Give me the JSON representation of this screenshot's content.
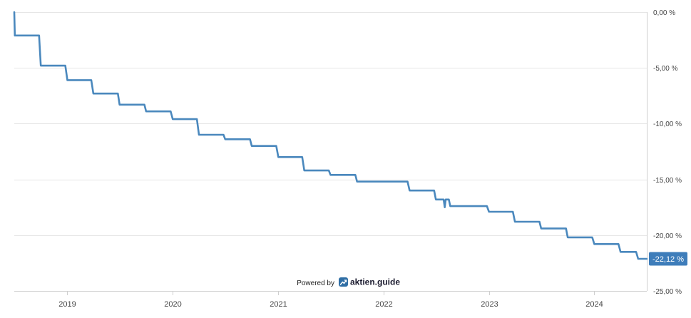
{
  "chart_data": {
    "type": "line",
    "title": "",
    "xlabel": "",
    "ylabel": "",
    "x_range": [
      "2018-07-01",
      "2024-07-01"
    ],
    "ylim": [
      -25,
      0
    ],
    "y_ticks": [
      0,
      -5,
      -10,
      -15,
      -20,
      -25
    ],
    "y_tick_labels": [
      "0,00 %",
      "-5,00 %",
      "-10,00 %",
      "-15,00 %",
      "-20,00 %",
      "-25,00 %"
    ],
    "x_ticks": [
      "2019-01-01",
      "2020-01-01",
      "2021-01-01",
      "2022-01-01",
      "2023-01-01",
      "2024-01-01"
    ],
    "x_tick_labels": [
      "2019",
      "2020",
      "2021",
      "2022",
      "2023",
      "2024"
    ],
    "grid": true,
    "legend": "none",
    "series": [
      {
        "color": "#4a88bd",
        "points": [
          [
            "2018-07-01",
            0.0
          ],
          [
            "2018-07-03",
            -2.1
          ],
          [
            "2018-09-25",
            -2.1
          ],
          [
            "2018-10-01",
            -4.8
          ],
          [
            "2018-12-25",
            -4.8
          ],
          [
            "2019-01-01",
            -6.1
          ],
          [
            "2019-03-25",
            -6.1
          ],
          [
            "2019-04-01",
            -7.3
          ],
          [
            "2019-06-25",
            -7.3
          ],
          [
            "2019-07-01",
            -8.3
          ],
          [
            "2019-09-25",
            -8.3
          ],
          [
            "2019-10-01",
            -8.9
          ],
          [
            "2019-12-25",
            -8.9
          ],
          [
            "2020-01-01",
            -9.6
          ],
          [
            "2020-03-25",
            -9.6
          ],
          [
            "2020-04-01",
            -11.0
          ],
          [
            "2020-06-25",
            -11.0
          ],
          [
            "2020-07-01",
            -11.4
          ],
          [
            "2020-09-25",
            -11.4
          ],
          [
            "2020-10-01",
            -12.0
          ],
          [
            "2020-12-25",
            -12.0
          ],
          [
            "2021-01-01",
            -13.0
          ],
          [
            "2021-03-25",
            -13.0
          ],
          [
            "2021-04-01",
            -14.2
          ],
          [
            "2021-06-25",
            -14.2
          ],
          [
            "2021-07-01",
            -14.6
          ],
          [
            "2021-09-25",
            -14.6
          ],
          [
            "2021-10-01",
            -15.2
          ],
          [
            "2022-03-25",
            -15.2
          ],
          [
            "2022-04-01",
            -16.0
          ],
          [
            "2022-06-25",
            -16.0
          ],
          [
            "2022-07-01",
            -16.8
          ],
          [
            "2022-07-28",
            -16.8
          ],
          [
            "2022-08-01",
            -17.5
          ],
          [
            "2022-08-04",
            -16.8
          ],
          [
            "2022-08-15",
            -16.8
          ],
          [
            "2022-08-20",
            -17.4
          ],
          [
            "2022-12-25",
            -17.4
          ],
          [
            "2023-01-01",
            -17.9
          ],
          [
            "2023-03-25",
            -17.9
          ],
          [
            "2023-04-01",
            -18.8
          ],
          [
            "2023-06-25",
            -18.8
          ],
          [
            "2023-07-01",
            -19.4
          ],
          [
            "2023-09-25",
            -19.4
          ],
          [
            "2023-10-01",
            -20.2
          ],
          [
            "2023-12-25",
            -20.2
          ],
          [
            "2024-01-01",
            -20.8
          ],
          [
            "2024-03-25",
            -20.8
          ],
          [
            "2024-04-01",
            -21.5
          ],
          [
            "2024-05-25",
            -21.5
          ],
          [
            "2024-06-01",
            -22.12
          ],
          [
            "2024-07-01",
            -22.12
          ]
        ]
      }
    ],
    "last_value_label": "-22,12 %",
    "last_value_color": "#3e7dba"
  },
  "footer": {
    "powered_by": "Powered by",
    "brand": "aktien.guide",
    "brand_icon": "trend-up-icon"
  },
  "colors": {
    "line": "#4a88bd",
    "brand_icon": "#2f6ea5"
  }
}
